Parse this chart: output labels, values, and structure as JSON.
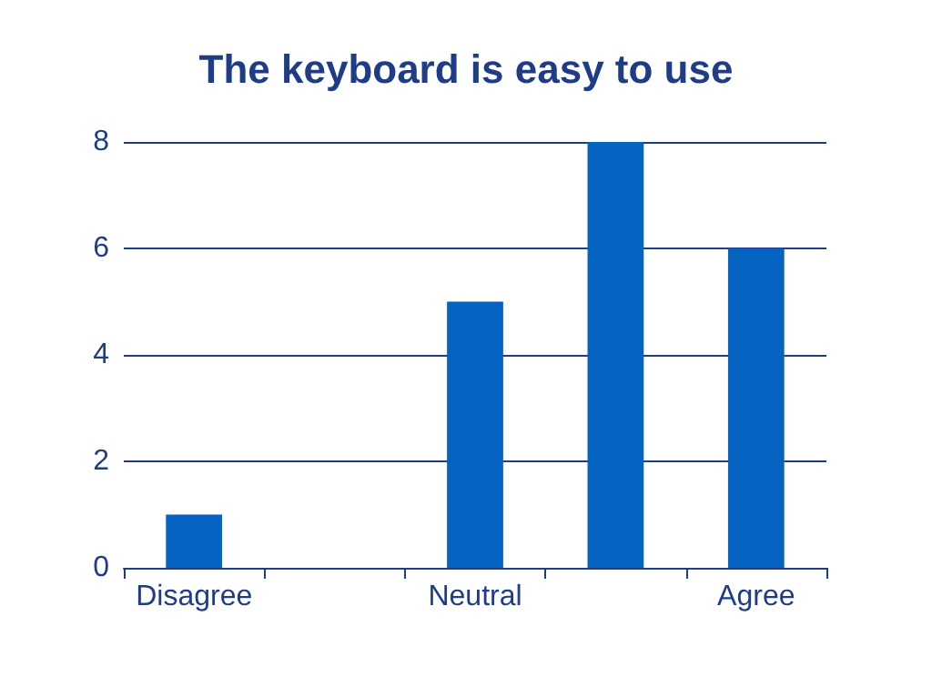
{
  "chart_data": {
    "type": "bar",
    "title": "The keyboard is easy to use",
    "categories": [
      "Disagree",
      null,
      "Neutral",
      null,
      "Agree"
    ],
    "values": [
      1,
      0,
      5,
      8,
      6
    ],
    "color": "#0563c1",
    "ylim": [
      0,
      8
    ],
    "yticks": [
      0,
      2,
      4,
      6,
      8
    ],
    "grid": "y"
  }
}
